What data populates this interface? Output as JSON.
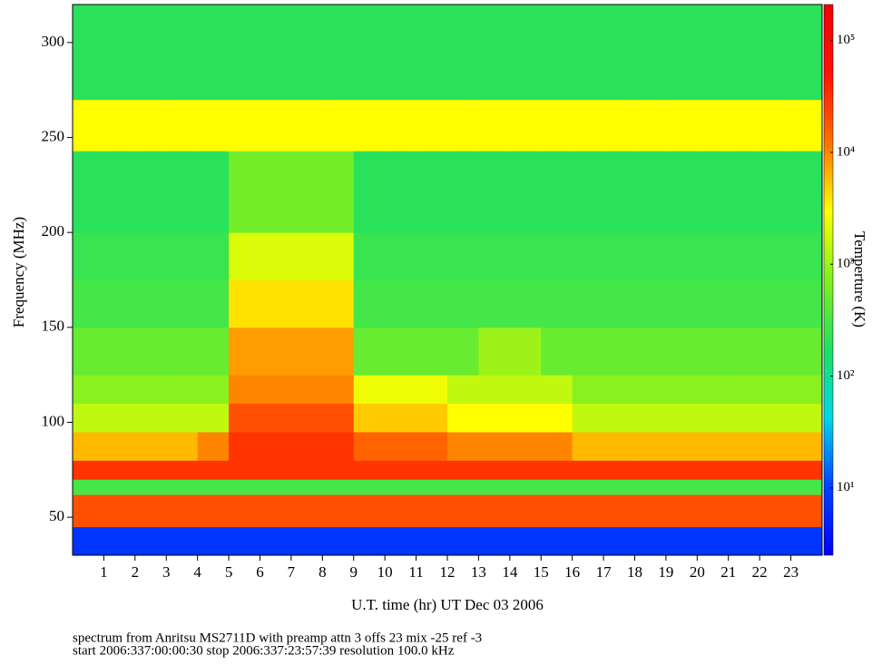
{
  "chart_data": {
    "type": "heatmap",
    "xlabel": "U.T. time (hr) UT Dec 03 2006",
    "ylabel": "Frequency (MHz)",
    "zlabel": "Temperture (K)",
    "notes": [
      "spectrum from Anritsu MS2711D with preamp attn 3 offs 23 mix -25 ref -3",
      "start 2006:337:00:00:30 stop 2006:337:23:57:39 resolution 100.0 kHz"
    ],
    "xlim": [
      0,
      24
    ],
    "xticks": [
      1,
      2,
      3,
      4,
      5,
      6,
      7,
      8,
      9,
      10,
      11,
      12,
      13,
      14,
      15,
      16,
      17,
      18,
      19,
      20,
      21,
      22,
      23
    ],
    "ylim": [
      30,
      320
    ],
    "yticks": [
      50,
      100,
      150,
      200,
      250,
      300
    ],
    "zlim": [
      2.5,
      210000
    ],
    "zlog": true,
    "zticks": [
      {
        "value": 10,
        "label": "10¹"
      },
      {
        "value": 100,
        "label": "10²"
      },
      {
        "value": 1000,
        "label": "10³"
      },
      {
        "value": 10000,
        "label": "10⁴"
      },
      {
        "value": 100000,
        "label": "10⁵"
      }
    ],
    "colorscale": [
      "#0000ff",
      "#0040ff",
      "#00d8e8",
      "#20e060",
      "#80f020",
      "#ffff00",
      "#ff7000",
      "#ff1000",
      "#f00000"
    ],
    "x_edges": [
      0,
      1,
      2,
      3,
      4,
      5,
      6,
      7,
      8,
      9,
      10,
      11,
      12,
      13,
      14,
      15,
      16,
      17,
      18,
      19,
      20,
      21,
      22,
      23,
      24
    ],
    "y_edges": [
      30,
      45,
      62,
      70,
      80,
      95,
      110,
      125,
      150,
      175,
      200,
      243,
      270,
      320
    ],
    "z": [
      [
        8,
        8,
        8,
        8,
        8,
        8,
        8,
        8,
        8,
        8,
        8,
        8,
        8,
        8,
        8,
        8,
        8,
        8,
        8,
        8,
        8,
        8,
        8,
        8
      ],
      [
        20000,
        20000,
        20000,
        20000,
        20000,
        20000,
        20000,
        20000,
        20000,
        20000,
        20000,
        20000,
        20000,
        20000,
        20000,
        20000,
        20000,
        20000,
        20000,
        20000,
        20000,
        20000,
        20000,
        20000
      ],
      [
        300,
        300,
        300,
        300,
        300,
        300,
        300,
        300,
        300,
        300,
        300,
        300,
        300,
        300,
        300,
        300,
        300,
        300,
        300,
        300,
        300,
        300,
        300,
        300
      ],
      [
        30000,
        30000,
        30000,
        30000,
        30000,
        30000,
        30000,
        30000,
        30000,
        30000,
        30000,
        30000,
        30000,
        30000,
        30000,
        30000,
        30000,
        30000,
        30000,
        30000,
        30000,
        30000,
        30000,
        30000
      ],
      [
        6000,
        6000,
        6000,
        6000,
        10000,
        30000,
        30000,
        30000,
        30000,
        15000,
        15000,
        15000,
        10000,
        10000,
        10000,
        10000,
        6000,
        6000,
        6000,
        6000,
        6000,
        6000,
        6000,
        6000
      ],
      [
        1500,
        1500,
        1500,
        1500,
        1500,
        20000,
        20000,
        20000,
        20000,
        5000,
        5000,
        5000,
        3000,
        3000,
        3000,
        3000,
        1500,
        1500,
        1500,
        1500,
        1500,
        1500,
        1500,
        1500
      ],
      [
        800,
        800,
        800,
        800,
        800,
        10000,
        10000,
        10000,
        10000,
        2500,
        2500,
        2500,
        1500,
        1500,
        1500,
        1500,
        800,
        800,
        800,
        800,
        800,
        800,
        800,
        800
      ],
      [
        500,
        500,
        500,
        500,
        500,
        8000,
        8000,
        8000,
        8000,
        500,
        500,
        500,
        500,
        1000,
        1000,
        500,
        500,
        500,
        500,
        500,
        500,
        500,
        500,
        500
      ],
      [
        300,
        300,
        300,
        300,
        300,
        4000,
        4000,
        4000,
        4000,
        300,
        300,
        300,
        300,
        300,
        300,
        300,
        300,
        300,
        300,
        300,
        300,
        300,
        300,
        300
      ],
      [
        250,
        250,
        250,
        250,
        250,
        2000,
        2000,
        2000,
        2000,
        250,
        250,
        250,
        250,
        250,
        250,
        250,
        250,
        250,
        250,
        250,
        250,
        250,
        250,
        250
      ],
      [
        200,
        200,
        200,
        200,
        200,
        600,
        600,
        600,
        600,
        200,
        200,
        200,
        200,
        200,
        200,
        200,
        200,
        200,
        200,
        200,
        200,
        200,
        200,
        200
      ],
      [
        3000,
        3000,
        3000,
        3000,
        3000,
        3000,
        3000,
        3000,
        3000,
        3000,
        3000,
        3000,
        3000,
        3000,
        3000,
        3000,
        3000,
        3000,
        3000,
        3000,
        3000,
        3000,
        3000,
        3000
      ],
      [
        200,
        200,
        200,
        200,
        200,
        200,
        200,
        200,
        200,
        200,
        200,
        200,
        200,
        200,
        200,
        200,
        200,
        200,
        200,
        200,
        200,
        200,
        200,
        200
      ]
    ]
  }
}
